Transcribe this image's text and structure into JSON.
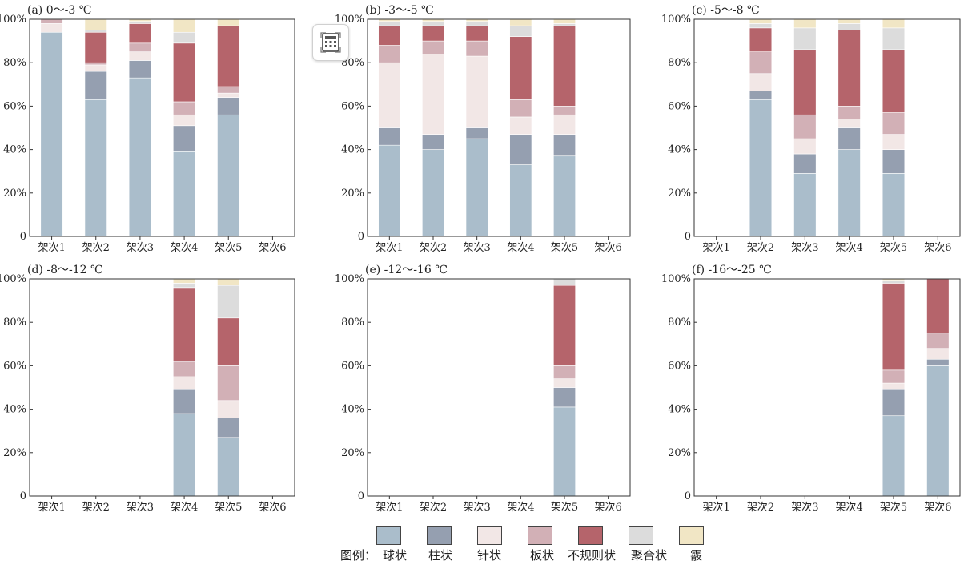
{
  "chart_data": [
    {
      "type": "bar",
      "stacked": true,
      "title": "(a) 0～-3 ℃",
      "categories": [
        "架次1",
        "架次2",
        "架次3",
        "架次4",
        "架次5",
        "架次6"
      ],
      "ylim": [
        0,
        100
      ],
      "yticks": [
        "0",
        "20%",
        "40%",
        "60%",
        "80%",
        "100%"
      ],
      "series": [
        {
          "name": "球状",
          "values": [
            94,
            63,
            73,
            39,
            56,
            0
          ]
        },
        {
          "name": "柱状",
          "values": [
            0,
            13,
            8,
            12,
            8,
            0
          ]
        },
        {
          "name": "针状",
          "values": [
            4,
            3,
            4,
            5,
            2,
            0
          ]
        },
        {
          "name": "板状",
          "values": [
            2,
            1,
            4,
            6,
            3,
            0
          ]
        },
        {
          "name": "不规则状",
          "values": [
            0,
            14,
            9,
            27,
            28,
            0
          ]
        },
        {
          "name": "聚合状",
          "values": [
            0,
            1,
            1,
            5,
            0,
            0
          ]
        },
        {
          "name": "霰",
          "values": [
            0,
            5,
            1,
            6,
            3,
            0
          ]
        }
      ]
    },
    {
      "type": "bar",
      "stacked": true,
      "title": "(b) -3～-5 ℃",
      "categories": [
        "架次1",
        "架次2",
        "架次3",
        "架次4",
        "架次5",
        "架次6"
      ],
      "ylim": [
        0,
        100
      ],
      "yticks": [
        "0",
        "20%",
        "40%",
        "60%",
        "80%",
        "100%"
      ],
      "series": [
        {
          "name": "球状",
          "values": [
            42,
            40,
            45,
            33,
            37,
            0
          ]
        },
        {
          "name": "柱状",
          "values": [
            8,
            7,
            5,
            14,
            10,
            0
          ]
        },
        {
          "name": "针状",
          "values": [
            30,
            37,
            33,
            8,
            9,
            0
          ]
        },
        {
          "name": "板状",
          "values": [
            8,
            6,
            7,
            8,
            4,
            0
          ]
        },
        {
          "name": "不规则状",
          "values": [
            9,
            7,
            7,
            29,
            37,
            0
          ]
        },
        {
          "name": "聚合状",
          "values": [
            2,
            2,
            2,
            5,
            1,
            0
          ]
        },
        {
          "name": "霰",
          "values": [
            1,
            1,
            1,
            3,
            2,
            0
          ]
        }
      ]
    },
    {
      "type": "bar",
      "stacked": true,
      "title": "(c) -5～-8 ℃",
      "categories": [
        "架次1",
        "架次2",
        "架次3",
        "架次4",
        "架次5",
        "架次6"
      ],
      "ylim": [
        0,
        100
      ],
      "yticks": [
        "0",
        "20%",
        "40%",
        "60%",
        "80%",
        "100%"
      ],
      "series": [
        {
          "name": "球状",
          "values": [
            0,
            63,
            29,
            40,
            29,
            0
          ]
        },
        {
          "name": "柱状",
          "values": [
            0,
            4,
            9,
            10,
            11,
            0
          ]
        },
        {
          "name": "针状",
          "values": [
            0,
            8,
            7,
            4,
            7,
            0
          ]
        },
        {
          "name": "板状",
          "values": [
            0,
            10,
            11,
            6,
            10,
            0
          ]
        },
        {
          "name": "不规则状",
          "values": [
            0,
            11,
            30,
            35,
            29,
            0
          ]
        },
        {
          "name": "聚合状",
          "values": [
            0,
            2,
            10,
            3,
            10,
            0
          ]
        },
        {
          "name": "霰",
          "values": [
            0,
            2,
            4,
            2,
            4,
            0
          ]
        }
      ]
    },
    {
      "type": "bar",
      "stacked": true,
      "title": "(d) -8～-12 ℃",
      "categories": [
        "架次1",
        "架次2",
        "架次3",
        "架次4",
        "架次5",
        "架次6"
      ],
      "ylim": [
        0,
        100
      ],
      "yticks": [
        "0",
        "20%",
        "40%",
        "60%",
        "80%",
        "100%"
      ],
      "series": [
        {
          "name": "球状",
          "values": [
            0,
            0,
            0,
            38,
            27,
            0
          ]
        },
        {
          "name": "柱状",
          "values": [
            0,
            0,
            0,
            11,
            9,
            0
          ]
        },
        {
          "name": "针状",
          "values": [
            0,
            0,
            0,
            6,
            8,
            0
          ]
        },
        {
          "name": "板状",
          "values": [
            0,
            0,
            0,
            7,
            16,
            0
          ]
        },
        {
          "name": "不规则状",
          "values": [
            0,
            0,
            0,
            34,
            22,
            0
          ]
        },
        {
          "name": "聚合状",
          "values": [
            0,
            0,
            0,
            2,
            15,
            0
          ]
        },
        {
          "name": "霰",
          "values": [
            0,
            0,
            0,
            2,
            3,
            0
          ]
        }
      ]
    },
    {
      "type": "bar",
      "stacked": true,
      "title": "(e) -12～-16 ℃",
      "categories": [
        "架次1",
        "架次2",
        "架次3",
        "架次4",
        "架次5",
        "架次6"
      ],
      "ylim": [
        0,
        100
      ],
      "yticks": [
        "0",
        "20%",
        "40%",
        "60%",
        "80%",
        "100%"
      ],
      "series": [
        {
          "name": "球状",
          "values": [
            0,
            0,
            0,
            0,
            41,
            0
          ]
        },
        {
          "name": "柱状",
          "values": [
            0,
            0,
            0,
            0,
            9,
            0
          ]
        },
        {
          "name": "针状",
          "values": [
            0,
            0,
            0,
            0,
            4,
            0
          ]
        },
        {
          "name": "板状",
          "values": [
            0,
            0,
            0,
            0,
            6,
            0
          ]
        },
        {
          "name": "不规则状",
          "values": [
            0,
            0,
            0,
            0,
            37,
            0
          ]
        },
        {
          "name": "聚合状",
          "values": [
            0,
            0,
            0,
            0,
            3,
            0
          ]
        },
        {
          "name": "霰",
          "values": [
            0,
            0,
            0,
            0,
            0,
            0
          ]
        }
      ]
    },
    {
      "type": "bar",
      "stacked": true,
      "title": "(f) -16～-25 ℃",
      "categories": [
        "架次1",
        "架次2",
        "架次3",
        "架次4",
        "架次5",
        "架次6"
      ],
      "ylim": [
        0,
        100
      ],
      "yticks": [
        "0",
        "20%",
        "40%",
        "60%",
        "80%",
        "100%"
      ],
      "series": [
        {
          "name": "球状",
          "values": [
            0,
            0,
            0,
            0,
            37,
            60
          ]
        },
        {
          "name": "柱状",
          "values": [
            0,
            0,
            0,
            0,
            12,
            3
          ]
        },
        {
          "name": "针状",
          "values": [
            0,
            0,
            0,
            0,
            3,
            5
          ]
        },
        {
          "name": "板状",
          "values": [
            0,
            0,
            0,
            0,
            6,
            7
          ]
        },
        {
          "name": "不规则状",
          "values": [
            0,
            0,
            0,
            0,
            40,
            25
          ]
        },
        {
          "name": "聚合状",
          "values": [
            0,
            0,
            0,
            0,
            1,
            0
          ]
        },
        {
          "name": "霰",
          "values": [
            0,
            0,
            0,
            0,
            1,
            0
          ]
        }
      ]
    }
  ],
  "series_colors": [
    "#aabdcb",
    "#959fb0",
    "#f2e7e6",
    "#d2b0b6",
    "#b5646b",
    "#dcdcdc",
    "#f1e6c5"
  ],
  "legend": {
    "title": "图例：",
    "labels": [
      "球状",
      "柱状",
      "针状",
      "板状",
      "不规则状",
      "聚合状",
      "霰"
    ]
  },
  "icon": "calculator-icon"
}
